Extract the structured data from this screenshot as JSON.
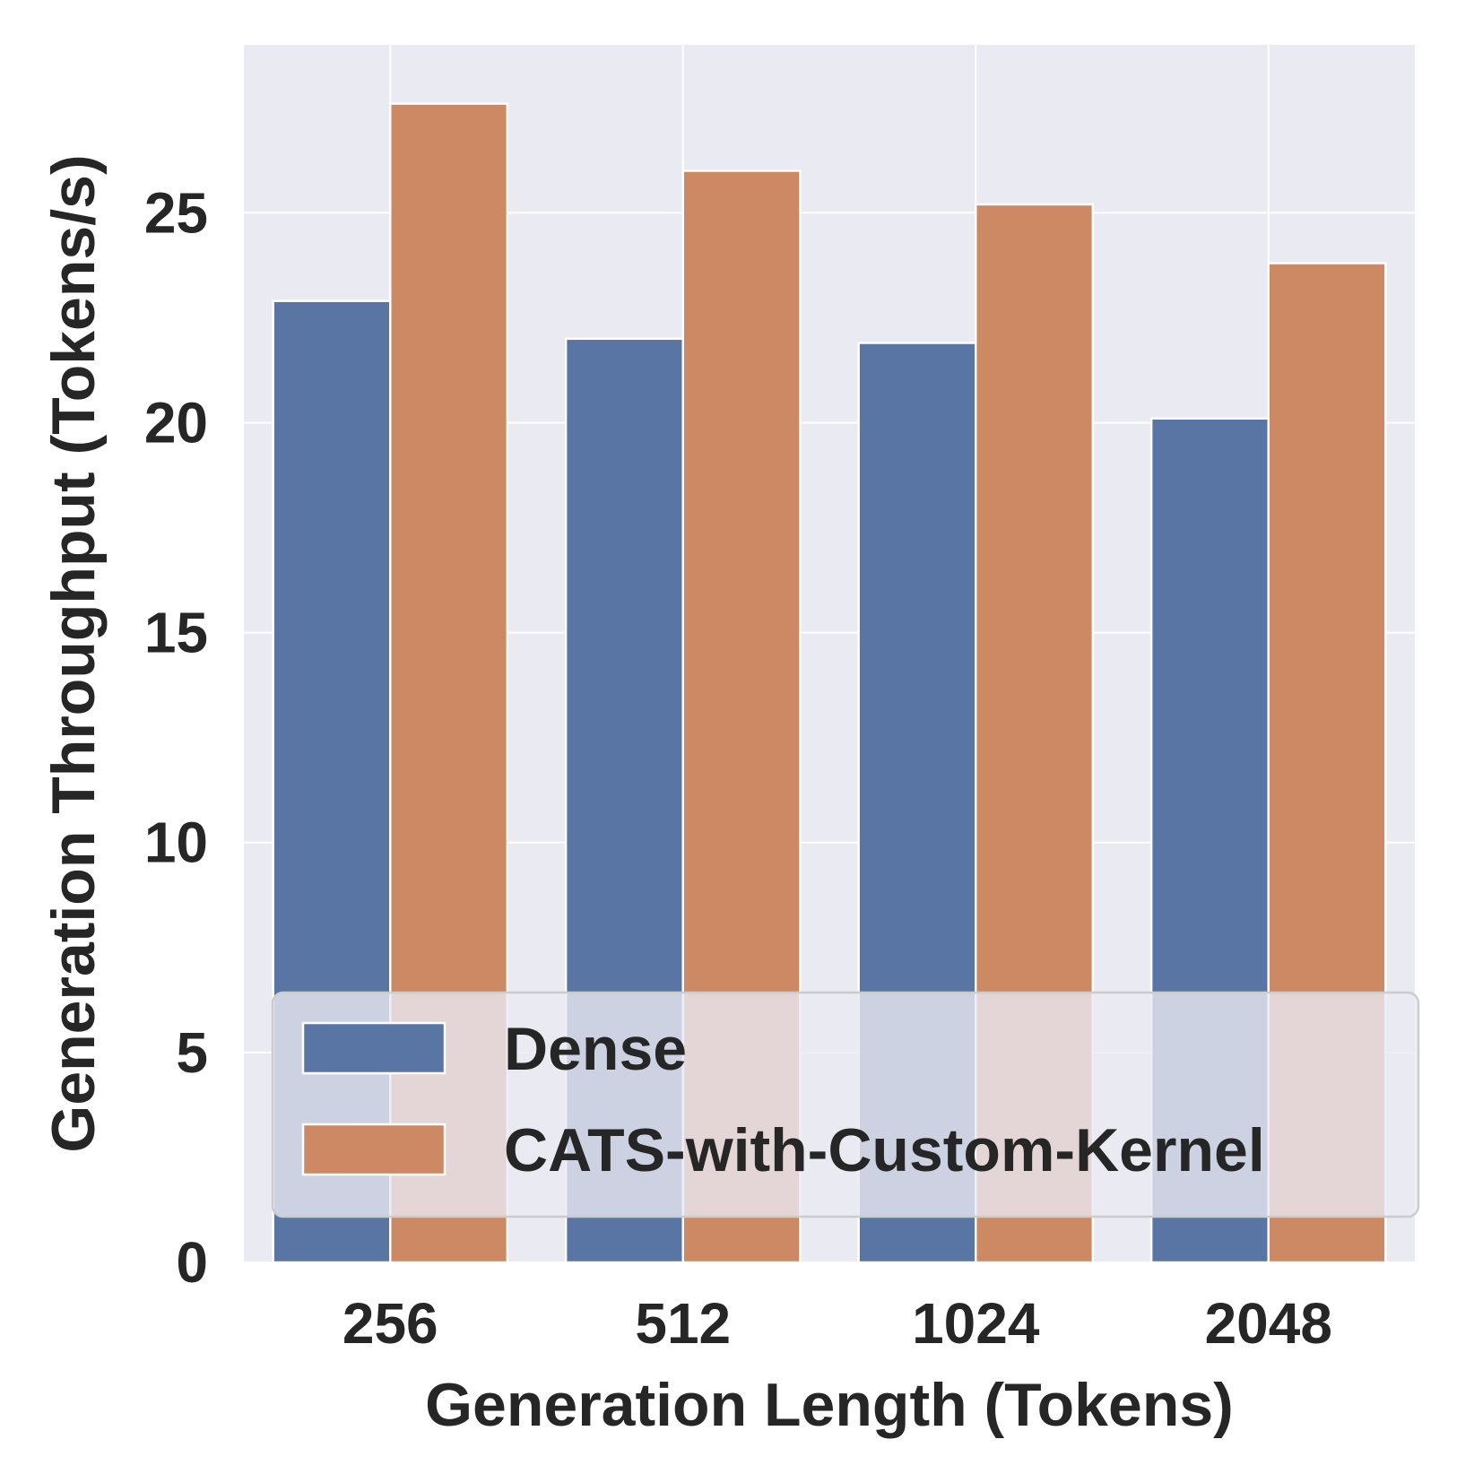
{
  "chart_data": {
    "type": "bar",
    "title": "",
    "xlabel": "Generation Length (Tokens)",
    "ylabel": "Generation Throughput (Tokens/s)",
    "categories": [
      "256",
      "512",
      "1024",
      "2048"
    ],
    "series": [
      {
        "name": "Dense",
        "color": "#5975A4",
        "values": [
          22.9,
          22.0,
          21.9,
          20.1
        ]
      },
      {
        "name": "CATS-with-Custom-Kernel",
        "color": "#CC8963",
        "values": [
          27.6,
          26.0,
          25.2,
          23.8
        ]
      }
    ],
    "ylim": [
      0,
      29
    ],
    "yticks": [
      0,
      5,
      10,
      15,
      20,
      25
    ],
    "ytick_labels": [
      "0",
      "5",
      "10",
      "15",
      "20",
      "25"
    ],
    "grid": true,
    "legend_position": "lower-right",
    "background_color": "#EAEAF2",
    "grid_color": "#FFFFFF"
  }
}
